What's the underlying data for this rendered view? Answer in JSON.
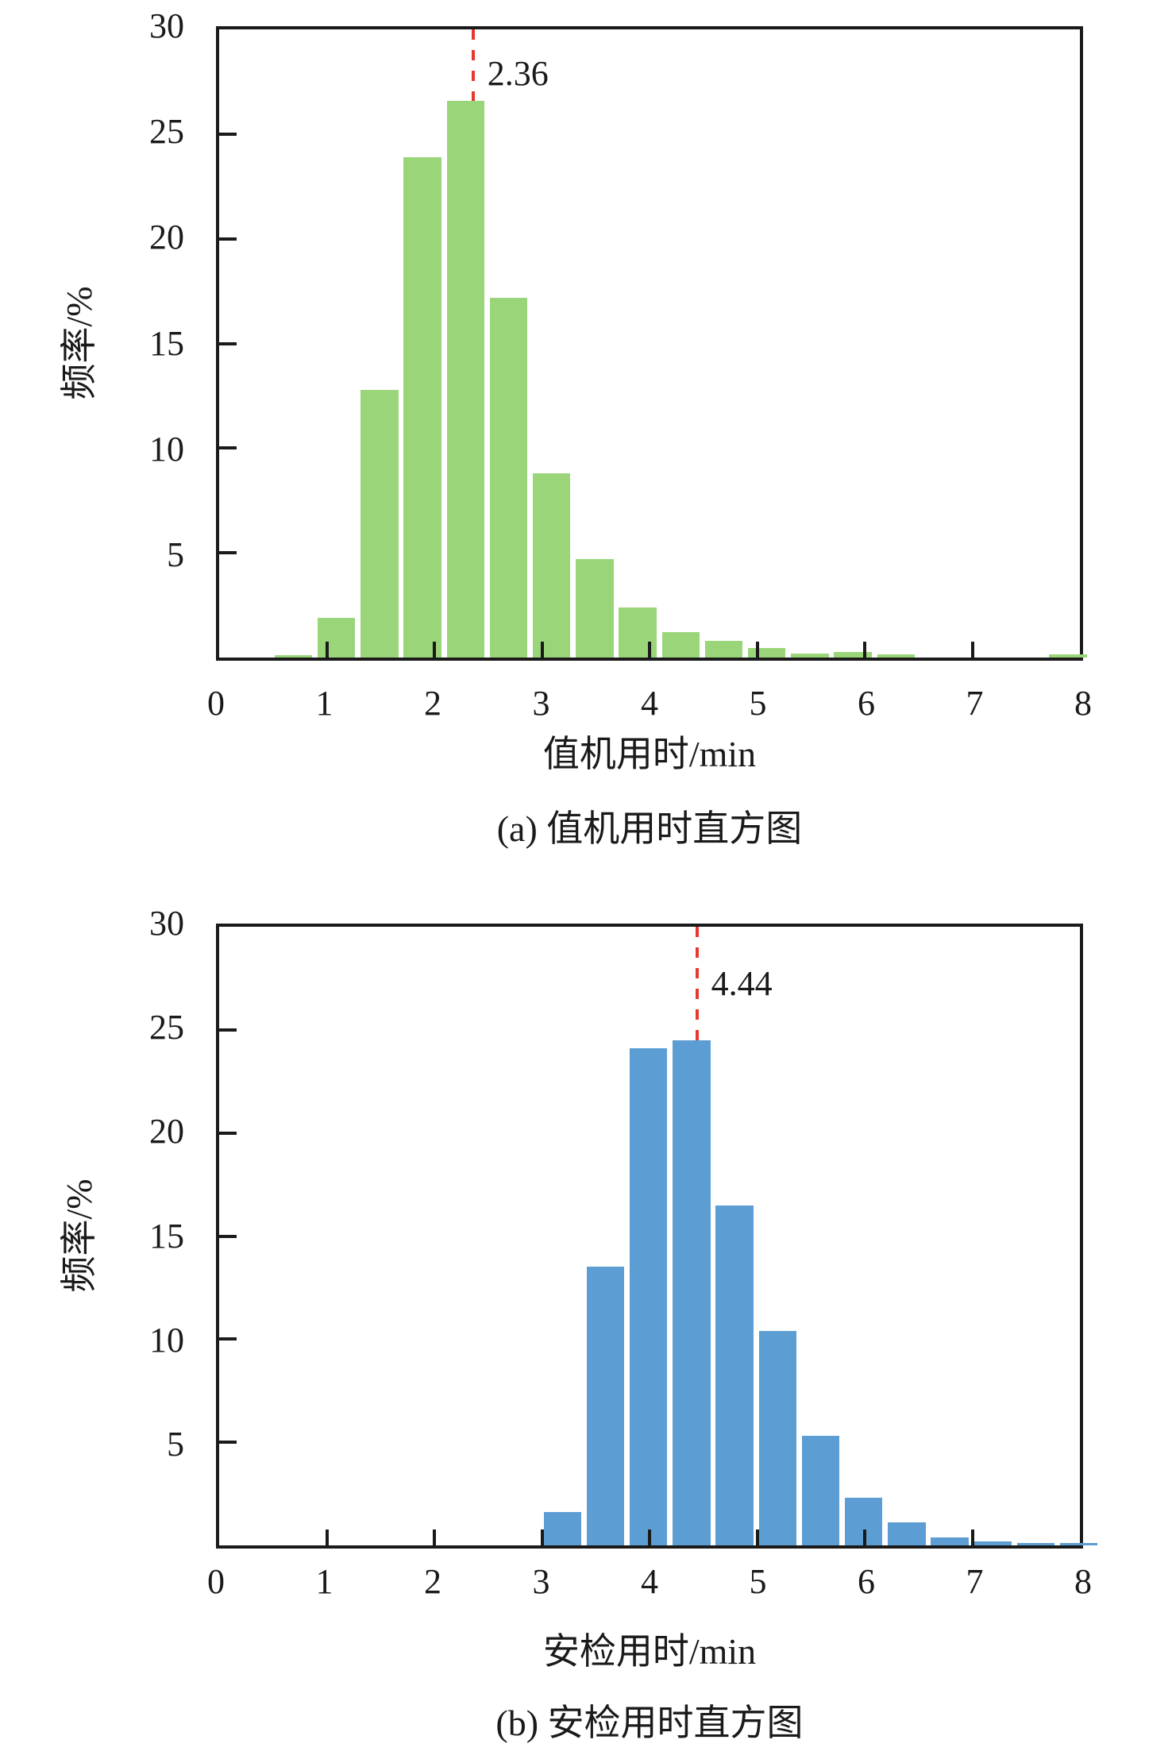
{
  "page": {
    "background": "#ffffff",
    "axis_color": "#1a1a1a"
  },
  "chart_data": [
    {
      "type": "bar",
      "panel": "a",
      "caption": "(a) 值机用时直方图",
      "xlabel": "值机用时/min",
      "ylabel": "频率/%",
      "xlim": [
        0,
        8
      ],
      "ylim": [
        0,
        30
      ],
      "grid": false,
      "legend": "none",
      "bar_color": "#9AD57A",
      "bin_width": 0.4,
      "x_ticks": [
        {
          "value": 0,
          "label": "0"
        },
        {
          "value": 1,
          "label": "1"
        },
        {
          "value": 2,
          "label": "2"
        },
        {
          "value": 3,
          "label": "3"
        },
        {
          "value": 4,
          "label": "4"
        },
        {
          "value": 5,
          "label": "5"
        },
        {
          "value": 6,
          "label": "6"
        },
        {
          "value": 7,
          "label": "7"
        },
        {
          "value": 8,
          "label": "8"
        }
      ],
      "y_ticks": [
        {
          "value": 5,
          "label": "5"
        },
        {
          "value": 10,
          "label": "10"
        },
        {
          "value": 15,
          "label": "15"
        },
        {
          "value": 20,
          "label": "20"
        },
        {
          "value": 25,
          "label": "25"
        },
        {
          "value": 30,
          "label": "30"
        }
      ],
      "bars": [
        {
          "start": 0.5,
          "value": 0.1
        },
        {
          "start": 0.9,
          "value": 1.9
        },
        {
          "start": 1.3,
          "value": 12.8
        },
        {
          "start": 1.7,
          "value": 23.9
        },
        {
          "start": 2.1,
          "value": 26.6
        },
        {
          "start": 2.5,
          "value": 17.2
        },
        {
          "start": 2.9,
          "value": 8.8
        },
        {
          "start": 3.3,
          "value": 4.7
        },
        {
          "start": 3.7,
          "value": 2.4
        },
        {
          "start": 4.1,
          "value": 1.2
        },
        {
          "start": 4.5,
          "value": 0.8
        },
        {
          "start": 4.9,
          "value": 0.45
        },
        {
          "start": 5.3,
          "value": 0.2
        },
        {
          "start": 5.7,
          "value": 0.25
        },
        {
          "start": 6.1,
          "value": 0.15
        },
        {
          "start": 7.7,
          "value": 0.15
        }
      ],
      "mean_line": {
        "x": 2.36,
        "label": "2.36",
        "color": "#E6392E",
        "style": "dashed"
      }
    },
    {
      "type": "bar",
      "panel": "b",
      "caption": "(b) 安检用时直方图",
      "xlabel": "安检用时/min",
      "ylabel": "频率/%",
      "xlim": [
        0,
        8
      ],
      "ylim": [
        0,
        30
      ],
      "grid": false,
      "legend": "none",
      "bar_color": "#5C9ED3",
      "bin_width": 0.4,
      "x_ticks": [
        {
          "value": 0,
          "label": "0"
        },
        {
          "value": 1,
          "label": "1"
        },
        {
          "value": 2,
          "label": "2"
        },
        {
          "value": 3,
          "label": "3"
        },
        {
          "value": 4,
          "label": "4"
        },
        {
          "value": 5,
          "label": "5"
        },
        {
          "value": 6,
          "label": "6"
        },
        {
          "value": 7,
          "label": "7"
        },
        {
          "value": 8,
          "label": "8"
        }
      ],
      "y_ticks": [
        {
          "value": 5,
          "label": "5"
        },
        {
          "value": 10,
          "label": "10"
        },
        {
          "value": 15,
          "label": "15"
        },
        {
          "value": 20,
          "label": "20"
        },
        {
          "value": 25,
          "label": "25"
        },
        {
          "value": 30,
          "label": "30"
        }
      ],
      "bars": [
        {
          "start": 3.0,
          "value": 1.6
        },
        {
          "start": 3.4,
          "value": 13.5
        },
        {
          "start": 3.8,
          "value": 24.1
        },
        {
          "start": 4.2,
          "value": 24.5
        },
        {
          "start": 4.6,
          "value": 16.5
        },
        {
          "start": 5.0,
          "value": 10.4
        },
        {
          "start": 5.4,
          "value": 5.3
        },
        {
          "start": 5.8,
          "value": 2.3
        },
        {
          "start": 6.2,
          "value": 1.1
        },
        {
          "start": 6.6,
          "value": 0.4
        },
        {
          "start": 7.0,
          "value": 0.2
        },
        {
          "start": 7.4,
          "value": 0.1
        },
        {
          "start": 7.8,
          "value": 0.1
        }
      ],
      "mean_line": {
        "x": 4.44,
        "label": "4.44",
        "color": "#E6392E",
        "style": "dashed"
      }
    }
  ]
}
